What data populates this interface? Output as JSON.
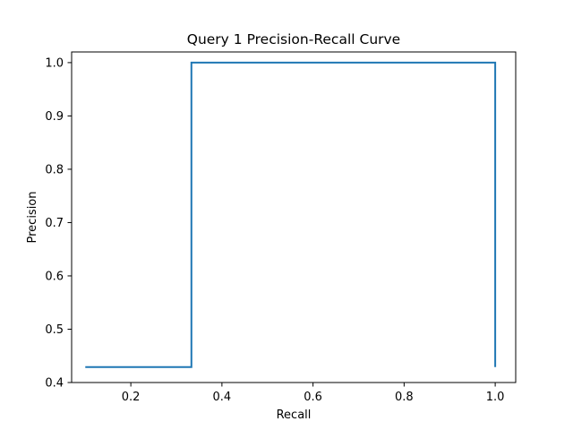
{
  "chart_data": {
    "type": "line",
    "line_style": "step",
    "title": "Query 1 Precision-Recall Curve",
    "xlabel": "Recall",
    "ylabel": "Precision",
    "xlim": [
      0.07,
      1.045
    ],
    "ylim": [
      0.4,
      1.02
    ],
    "xticks": [
      0.2,
      0.4,
      0.6,
      0.8,
      1.0
    ],
    "xtick_labels": [
      "0.2",
      "0.4",
      "0.6",
      "0.8",
      "1.0"
    ],
    "yticks": [
      0.4,
      0.5,
      0.6,
      0.7,
      0.8,
      0.9,
      1.0
    ],
    "ytick_labels": [
      "0.4",
      "0.5",
      "0.6",
      "0.7",
      "0.8",
      "0.9",
      "1.0"
    ],
    "grid": false,
    "series": [
      {
        "color": "#1f77b4",
        "x": [
          0.1,
          0.333,
          0.333,
          1.0,
          1.0
        ],
        "y": [
          0.429,
          0.429,
          1.0,
          1.0,
          0.429
        ]
      }
    ]
  }
}
